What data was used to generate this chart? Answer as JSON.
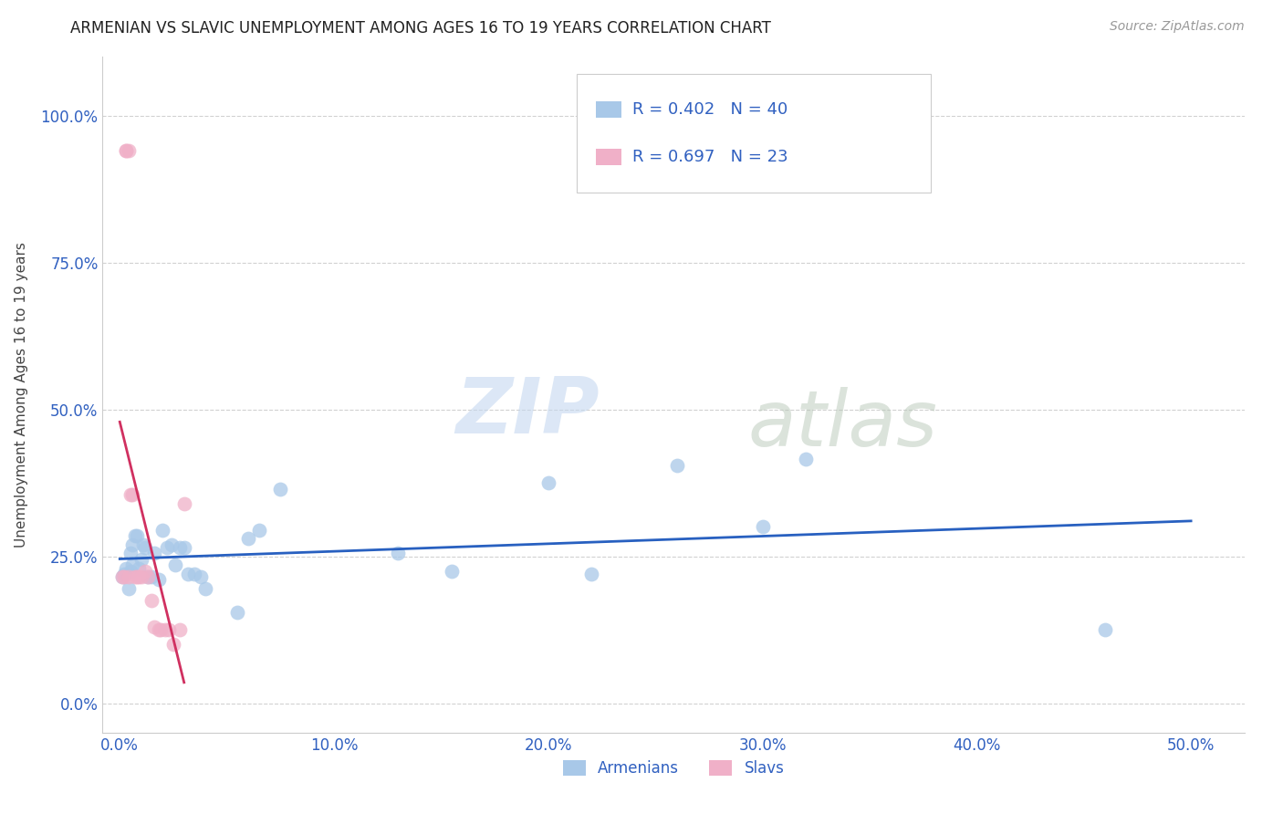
{
  "title": "ARMENIAN VS SLAVIC UNEMPLOYMENT AMONG AGES 16 TO 19 YEARS CORRELATION CHART",
  "source": "Source: ZipAtlas.com",
  "xlabel_ticks": [
    "0.0%",
    "10.0%",
    "20.0%",
    "30.0%",
    "40.0%",
    "50.0%"
  ],
  "xlabel_tick_vals": [
    0.0,
    0.1,
    0.2,
    0.3,
    0.4,
    0.5
  ],
  "ylabel": "Unemployment Among Ages 16 to 19 years",
  "ylabel_ticks": [
    "0.0%",
    "25.0%",
    "50.0%",
    "75.0%",
    "100.0%"
  ],
  "ylabel_tick_vals": [
    0.0,
    0.25,
    0.5,
    0.75,
    1.0
  ],
  "xlim": [
    -0.008,
    0.525
  ],
  "ylim": [
    -0.05,
    1.1
  ],
  "armenian_color": "#a8c8e8",
  "slavic_color": "#f0b0c8",
  "armenian_line_color": "#2860c0",
  "slavic_line_color": "#d03060",
  "legend_text_color": "#3060c0",
  "tick_color": "#3060c0",
  "R_armenian": 0.402,
  "N_armenian": 40,
  "R_slavic": 0.697,
  "N_slavic": 23,
  "armenians_x": [
    0.001,
    0.002,
    0.003,
    0.004,
    0.005,
    0.005,
    0.006,
    0.006,
    0.007,
    0.008,
    0.009,
    0.01,
    0.011,
    0.012,
    0.013,
    0.015,
    0.016,
    0.018,
    0.02,
    0.022,
    0.024,
    0.026,
    0.028,
    0.03,
    0.032,
    0.035,
    0.038,
    0.04,
    0.055,
    0.06,
    0.065,
    0.075,
    0.13,
    0.155,
    0.2,
    0.22,
    0.26,
    0.3,
    0.32,
    0.46
  ],
  "armenians_y": [
    0.215,
    0.22,
    0.23,
    0.195,
    0.225,
    0.255,
    0.235,
    0.27,
    0.285,
    0.285,
    0.23,
    0.245,
    0.27,
    0.265,
    0.215,
    0.215,
    0.255,
    0.21,
    0.295,
    0.265,
    0.27,
    0.235,
    0.265,
    0.265,
    0.22,
    0.22,
    0.215,
    0.195,
    0.155,
    0.28,
    0.295,
    0.365,
    0.255,
    0.225,
    0.375,
    0.22,
    0.405,
    0.3,
    0.415,
    0.125
  ],
  "slavs_x": [
    0.001,
    0.002,
    0.003,
    0.003,
    0.004,
    0.004,
    0.005,
    0.006,
    0.007,
    0.008,
    0.009,
    0.01,
    0.012,
    0.013,
    0.015,
    0.016,
    0.018,
    0.019,
    0.021,
    0.023,
    0.025,
    0.028,
    0.03
  ],
  "slavs_y": [
    0.215,
    0.215,
    0.94,
    0.94,
    0.94,
    0.215,
    0.355,
    0.355,
    0.215,
    0.215,
    0.215,
    0.215,
    0.225,
    0.215,
    0.175,
    0.13,
    0.125,
    0.125,
    0.125,
    0.125,
    0.1,
    0.125,
    0.34
  ],
  "watermark_zip": "ZIP",
  "watermark_atlas": "atlas",
  "legend_armenian_label": "Armenians",
  "legend_slavic_label": "Slavs"
}
